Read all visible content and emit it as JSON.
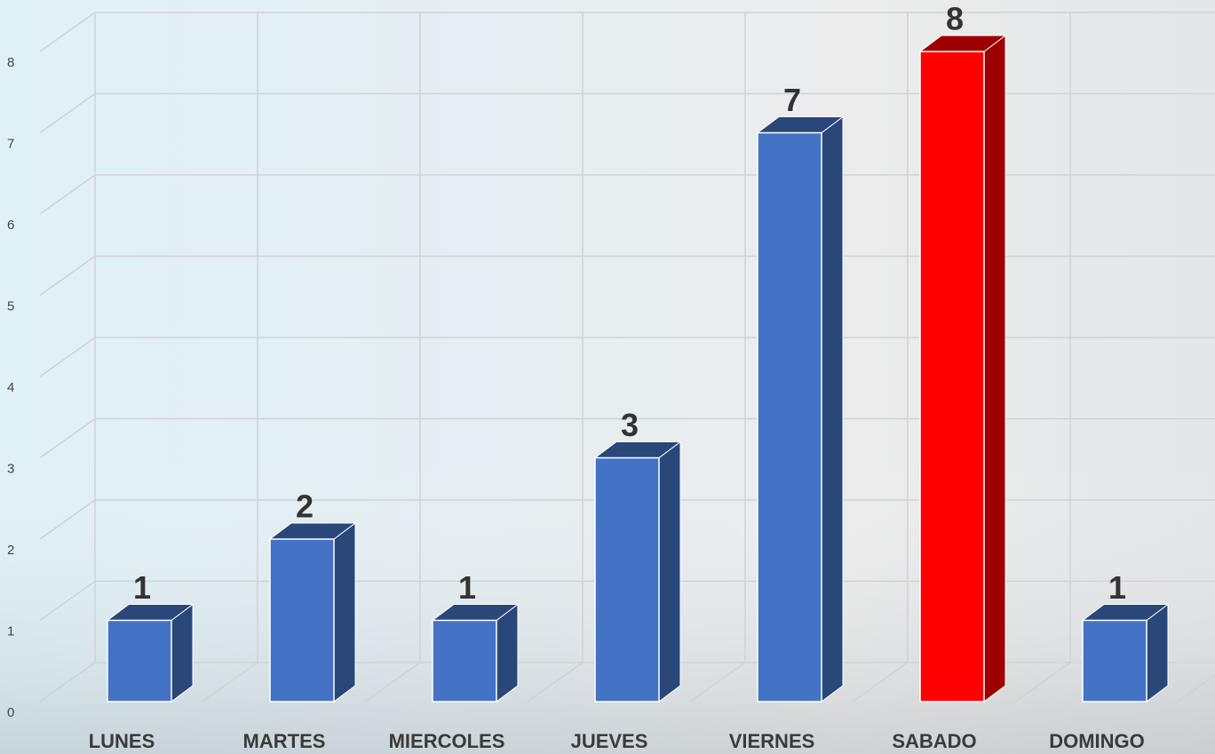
{
  "chart_data": {
    "type": "bar3d",
    "categories": [
      "LUNES",
      "MARTES",
      "MIERCOLES",
      "JUEVES",
      "VIERNES",
      "SABADO",
      "DOMINGO"
    ],
    "values": [
      1,
      2,
      1,
      3,
      7,
      8,
      1
    ],
    "colors": [
      "#4472c4",
      "#4472c4",
      "#4472c4",
      "#4472c4",
      "#4472c4",
      "#ff0000",
      "#4472c4"
    ],
    "ylim": [
      0,
      8
    ],
    "yticks": [
      0,
      1,
      2,
      3,
      4,
      5,
      6,
      7,
      8
    ],
    "grid": true
  }
}
